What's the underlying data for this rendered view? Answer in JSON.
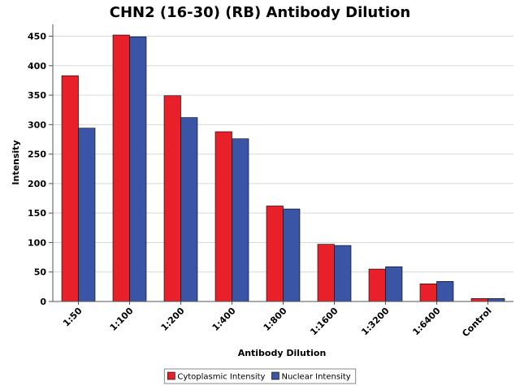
{
  "chart_data": {
    "type": "bar",
    "title": "CHN2 (16-30) (RB) Antibody Dilution",
    "xlabel": "Antibody Dilution",
    "ylabel": "Intensity",
    "ylim": [
      0,
      470
    ],
    "yticks": [
      0,
      50,
      100,
      150,
      200,
      250,
      300,
      350,
      400,
      450
    ],
    "grid": true,
    "legend_position": "bottom",
    "categories": [
      "1:50",
      "1:100",
      "1:200",
      "1:400",
      "1:800",
      "1:1600",
      "1:3200",
      "1:6400",
      "Control"
    ],
    "series": [
      {
        "name": "Cytoplasmic Intensity",
        "color": "#e8202a",
        "values": [
          383,
          452,
          349,
          288,
          162,
          97,
          55,
          30,
          5
        ]
      },
      {
        "name": "Nuclear Intensity",
        "color": "#3a55a6",
        "values": [
          294,
          449,
          312,
          276,
          157,
          95,
          59,
          34,
          5
        ]
      }
    ]
  }
}
